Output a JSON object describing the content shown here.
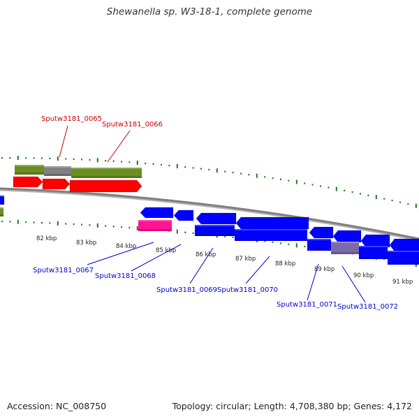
{
  "title": "Shewanella sp. W3-18-1, complete genome",
  "footer": {
    "accession": "Accession: NC_008750",
    "summary": "Topology: circular; Length: 4,708,380 bp; Genes: 4,172"
  },
  "colors": {
    "backbone": "#8a8a8a",
    "tick": "#1a7a1a",
    "forward_gene": "#ff0000",
    "reverse_gene": "#0000ff",
    "forward_label": "#cc0000",
    "reverse_label": "#0000cc",
    "cds_feature": "#6b8e23",
    "misc_feature": "#808080",
    "magenta_feature": "#ff1493",
    "shaded_block": "#7b6aa8"
  },
  "scale_labels": [
    "82 kbp",
    "83 kbp",
    "84 kbp",
    "85 kbp",
    "86 kbp",
    "87 kbp",
    "88 kbp",
    "89 kbp",
    "90 kbp",
    "91 kbp"
  ],
  "gene_labels": [
    "Sputw3181_0065",
    "Sputw3181_0066",
    "Sputw3181_0067",
    "Sputw3181_0068",
    "Sputw3181_0069",
    "Sputw3181_0070",
    "Sputw3181_0071",
    "Sputw3181_0072"
  ]
}
